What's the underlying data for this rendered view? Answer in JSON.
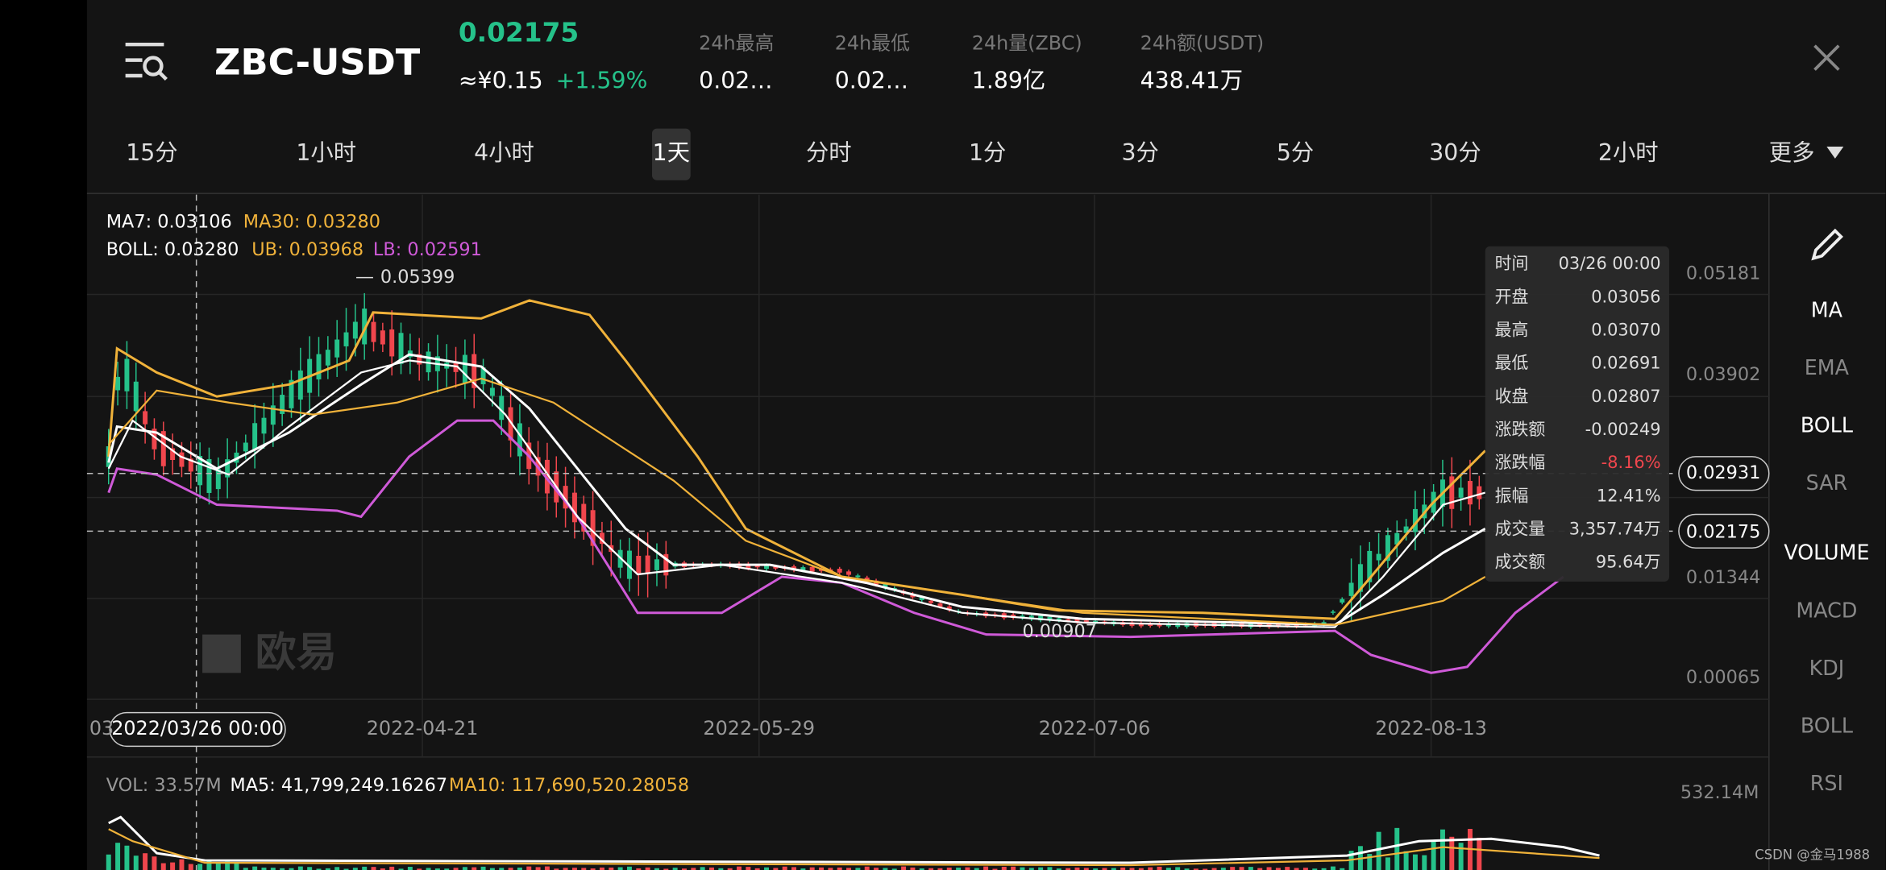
{
  "header": {
    "pair": "ZBC-USDT",
    "price": "0.02175",
    "cny": "≈¥0.15",
    "change": "+1.59%",
    "stats": [
      {
        "label": "24h最高",
        "value": "0.02…"
      },
      {
        "label": "24h最低",
        "value": "0.02…"
      },
      {
        "label": "24h量(ZBC)",
        "value": "1.89亿"
      },
      {
        "label": "24h额(USDT)",
        "value": "438.41万"
      }
    ]
  },
  "tabs": [
    "15分",
    "1小时",
    "4小时",
    "1天",
    "分时",
    "1分",
    "3分",
    "5分",
    "30分",
    "2小时",
    "更多"
  ],
  "active_tab": 3,
  "indicators": {
    "ma7": "MA7: 0.03106",
    "ma30": "MA30: 0.03280",
    "boll": "BOLL: 0.03280",
    "ub": "UB: 0.03968",
    "lb": "LB: 0.02591"
  },
  "price_axis": [
    "0.05181",
    "0.03902",
    "0.02931",
    "0.02175",
    "0.01344",
    "0.00065"
  ],
  "annotations": {
    "high": "0.05399",
    "low": "0.00907"
  },
  "dates": [
    "03",
    "2022/03/26 00:00",
    "2022-04-21",
    "2022-05-29",
    "2022-07-06",
    "2022-08-13"
  ],
  "tooltip": [
    [
      "时间",
      "03/26 00:00"
    ],
    [
      "开盘",
      "0.03056"
    ],
    [
      "最高",
      "0.03070"
    ],
    [
      "最低",
      "0.02691"
    ],
    [
      "收盘",
      "0.02807"
    ],
    [
      "涨跌额",
      "-0.00249"
    ],
    [
      "涨跌幅",
      "-8.16%"
    ],
    [
      "振幅",
      "12.41%"
    ],
    [
      "成交量",
      "3,357.74万"
    ],
    [
      "成交额",
      "95.64万"
    ]
  ],
  "side": [
    "MA",
    "EMA",
    "BOLL",
    "SAR",
    "VOLUME",
    "MACD",
    "KDJ",
    "BOLL",
    "RSI"
  ],
  "volume": {
    "vol": "VOL: 33.57M",
    "ma5": "MA5: 41,799,249.16267",
    "ma10": "MA10: 117,690,520.28058",
    "axis": "532.14M"
  },
  "watermark": "欧易",
  "credit": "CSDN @金马1988"
}
